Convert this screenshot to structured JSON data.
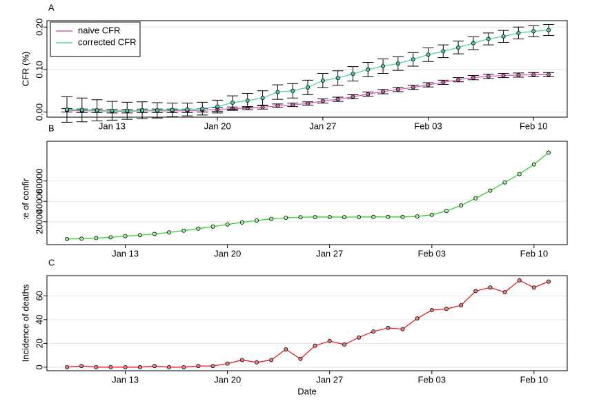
{
  "chart_data": [
    {
      "type": "line",
      "panel_label": "A",
      "ylabel": "CFR (%)",
      "categories": [
        null,
        null,
        null,
        "Jan 13",
        null,
        null,
        null,
        null,
        null,
        null,
        "Jan 20",
        null,
        null,
        null,
        null,
        null,
        null,
        "Jan 27",
        null,
        null,
        null,
        null,
        null,
        null,
        "Feb 03",
        null,
        null,
        null,
        null,
        null,
        null,
        "Feb 10",
        null
      ],
      "ylim": [
        -0.012,
        0.215
      ],
      "yticks": [
        {
          "value": 0,
          "label": "0.00"
        },
        {
          "value": 0.1,
          "label": "0.10"
        },
        {
          "value": 0.2,
          "label": "0.20"
        }
      ],
      "grid": true,
      "legend": "upper left",
      "series": [
        {
          "name": "naive CFR",
          "color": "#d65fb5",
          "values": [
            0.004,
            0.003,
            0.003,
            0.002,
            0.002,
            0.003,
            0.003,
            0.003,
            0.003,
            0.004,
            0.006,
            0.008,
            0.009,
            0.011,
            0.015,
            0.017,
            0.02,
            0.026,
            0.03,
            0.036,
            0.042,
            0.048,
            0.053,
            0.058,
            0.064,
            0.07,
            0.076,
            0.081,
            0.084,
            0.086,
            0.087,
            0.088,
            0.088
          ],
          "errors": [
            0.004,
            0.004,
            0.004,
            0.004,
            0.004,
            0.004,
            0.004,
            0.004,
            0.004,
            0.004,
            0.004,
            0.004,
            0.004,
            0.004,
            0.004,
            0.004,
            0.004,
            0.005,
            0.005,
            0.005,
            0.005,
            0.005,
            0.005,
            0.005,
            0.005,
            0.005,
            0.005,
            0.005,
            0.005,
            0.005,
            0.005,
            0.005,
            0.005
          ]
        },
        {
          "name": "corrected CFR",
          "color": "#4fcfa8",
          "values": [
            0.006,
            0.005,
            0.004,
            0.003,
            0.003,
            0.004,
            0.004,
            0.005,
            0.006,
            0.008,
            0.013,
            0.022,
            0.027,
            0.033,
            0.047,
            0.05,
            0.058,
            0.074,
            0.08,
            0.09,
            0.1,
            0.108,
            0.114,
            0.124,
            0.135,
            0.143,
            0.152,
            0.162,
            0.172,
            0.178,
            0.186,
            0.19,
            0.193
          ],
          "errors": [
            0.03,
            0.028,
            0.025,
            0.022,
            0.02,
            0.02,
            0.018,
            0.016,
            0.015,
            0.015,
            0.015,
            0.016,
            0.017,
            0.017,
            0.017,
            0.017,
            0.017,
            0.017,
            0.017,
            0.017,
            0.017,
            0.017,
            0.016,
            0.016,
            0.016,
            0.015,
            0.015,
            0.015,
            0.014,
            0.014,
            0.014,
            0.013,
            0.013
          ]
        }
      ]
    },
    {
      "type": "line",
      "panel_label": "B",
      "ylabel": "Incidence of confirmed cases",
      "categories": [
        null,
        null,
        null,
        null,
        "Jan 13",
        null,
        null,
        null,
        null,
        null,
        null,
        "Jan 20",
        null,
        null,
        null,
        null,
        null,
        null,
        "Jan 27",
        null,
        null,
        null,
        null,
        null,
        null,
        "Feb 03",
        null,
        null,
        null,
        null,
        null,
        null,
        "Feb 10",
        null
      ],
      "ylim": [
        -2500,
        99000
      ],
      "yticks": [
        20000,
        40000,
        60000
      ],
      "grid": true,
      "series": [
        {
          "color": "#2ed12e",
          "marker_fill": "#a8f0a8",
          "values": [
            3000,
            3300,
            3900,
            4700,
            5800,
            6800,
            8000,
            9500,
            11200,
            13200,
            15200,
            17300,
            19300,
            21200,
            22800,
            23800,
            24400,
            24600,
            24600,
            24500,
            24600,
            24700,
            24700,
            24700,
            25200,
            26800,
            30500,
            36000,
            43000,
            50500,
            58600,
            66800,
            76300,
            87800
          ]
        }
      ]
    },
    {
      "type": "line",
      "panel_label": "C",
      "ylabel": "Incidence of deaths",
      "xlabel": "Date",
      "categories": [
        null,
        null,
        null,
        null,
        "Jan 13",
        null,
        null,
        null,
        null,
        null,
        null,
        "Jan 20",
        null,
        null,
        null,
        null,
        null,
        null,
        "Jan 27",
        null,
        null,
        null,
        null,
        null,
        null,
        "Feb 03",
        null,
        null,
        null,
        null,
        null,
        null,
        "Feb 10",
        null
      ],
      "ylim": [
        -3,
        77
      ],
      "yticks": [
        0,
        20,
        40,
        60
      ],
      "grid": true,
      "series": [
        {
          "color": "#e02020",
          "marker_fill": "#f08080",
          "values": [
            0,
            1,
            0,
            0,
            0,
            0,
            1,
            0,
            0,
            1,
            1,
            3,
            6,
            4,
            6,
            15,
            7,
            18,
            22,
            19,
            25,
            30,
            33,
            32,
            41,
            48,
            49,
            52,
            64,
            67,
            63,
            73,
            67,
            72
          ]
        }
      ]
    }
  ]
}
